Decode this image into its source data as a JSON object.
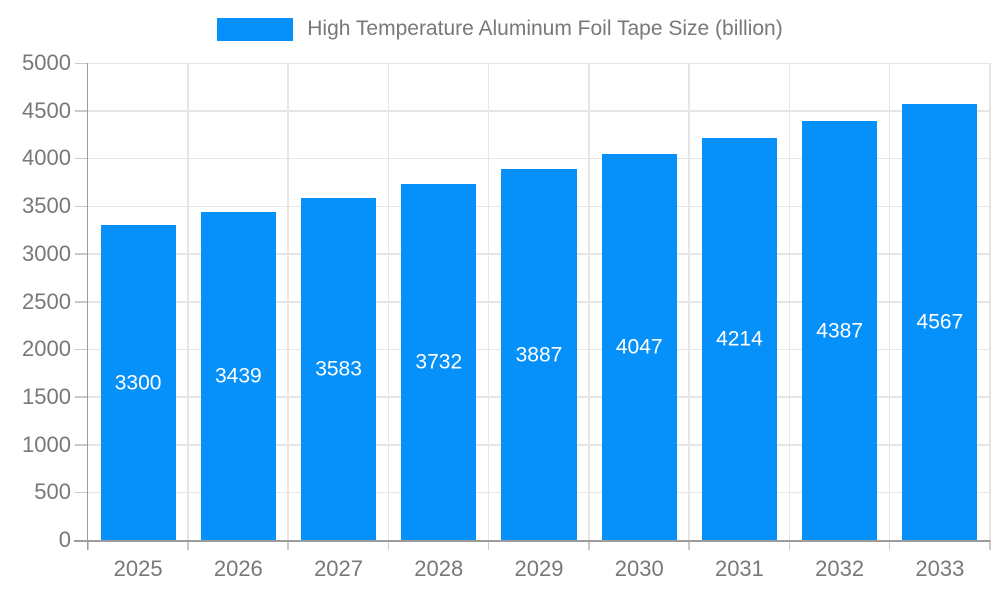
{
  "legend": {
    "label": "High Temperature Aluminum Foil Tape Size (billion)"
  },
  "chart_data": {
    "type": "bar",
    "title": "High Temperature Aluminum Foil Tape Size (billion)",
    "categories": [
      "2025",
      "2026",
      "2027",
      "2028",
      "2029",
      "2030",
      "2031",
      "2032",
      "2033"
    ],
    "values": [
      3300,
      3439,
      3583,
      3732,
      3887,
      4047,
      4214,
      4387,
      4567
    ],
    "series": [
      {
        "name": "High Temperature Aluminum Foil Tape Size (billion)",
        "values": [
          3300,
          3439,
          3583,
          3732,
          3887,
          4047,
          4214,
          4387,
          4567
        ]
      }
    ],
    "xlabel": "",
    "ylabel": "",
    "ylim": [
      0,
      5000
    ],
    "yticks": [
      0,
      500,
      1000,
      1500,
      2000,
      2500,
      3000,
      3500,
      4000,
      4500,
      5000
    ],
    "grid": true,
    "legend_position": "top-center",
    "value_labels": "inside-center"
  },
  "colors": {
    "bar": "#0590FA",
    "grid": "#E6E6E6",
    "axis": "#9C9C9C",
    "tick": "#C9C9C9",
    "text": "#787878",
    "value_label": "#FFFFFF",
    "background": "#FFFFFF"
  }
}
